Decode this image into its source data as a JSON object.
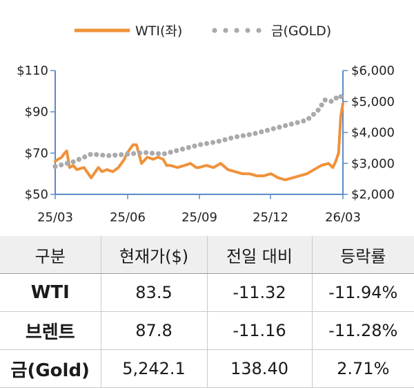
{
  "chart_data": {
    "type": "line",
    "legend": {
      "placement": "top-center",
      "entries": [
        "WTI(좌)",
        "금(GOLD)"
      ]
    },
    "x_tick_labels": [
      "25/03",
      "25/06",
      "25/09",
      "25/12",
      "26/03"
    ],
    "y_left": {
      "ylim": [
        50,
        110
      ],
      "ticks": [
        "$50",
        "$70",
        "$90",
        "$110"
      ]
    },
    "y_right": {
      "ylim": [
        2000,
        6000
      ],
      "ticks": [
        "$2,000",
        "$3,000",
        "$4,000",
        "$5,000",
        "$6,000"
      ]
    },
    "grid": false,
    "series": [
      {
        "name": "WTI(좌)",
        "axis": "left",
        "style": "solid",
        "color": "#f0913a",
        "x": [
          0,
          0.04,
          0.09,
          0.13,
          0.16,
          0.2,
          0.25,
          0.3,
          0.4,
          0.5,
          0.6,
          0.65,
          0.72,
          0.8,
          0.88,
          0.96,
          1.0,
          1.08,
          1.13,
          1.2,
          1.28,
          1.36,
          1.43,
          1.5,
          1.55,
          1.6,
          1.7,
          1.8,
          1.88,
          1.96,
          2.0,
          2.1,
          2.2,
          2.3,
          2.4,
          2.5,
          2.6,
          2.7,
          2.8,
          2.9,
          3.0,
          3.1,
          3.2,
          3.3,
          3.4,
          3.5,
          3.6,
          3.7,
          3.8,
          3.86,
          3.9,
          3.94,
          3.97,
          4.0
        ],
        "values": [
          66,
          67,
          68,
          70,
          71,
          63,
          64,
          62,
          63,
          58,
          63,
          61,
          62,
          61,
          63,
          67,
          70,
          74,
          74,
          65,
          68,
          67,
          68,
          67,
          64,
          64,
          63,
          64,
          65,
          63,
          63,
          64,
          63,
          65,
          62,
          61,
          60,
          60,
          59,
          59,
          60,
          58,
          57,
          58,
          59,
          60,
          62,
          64,
          65,
          63,
          66,
          70,
          88,
          94
        ]
      },
      {
        "name": "금(GOLD)",
        "axis": "right",
        "style": "dotted",
        "color": "#aaaaaa",
        "x": [
          0,
          0.25,
          0.5,
          0.75,
          1.0,
          1.25,
          1.5,
          1.75,
          2.0,
          2.25,
          2.5,
          2.75,
          3.0,
          3.25,
          3.5,
          3.65,
          3.75,
          3.85,
          3.95,
          4.0
        ],
        "values": [
          2900,
          3050,
          3300,
          3250,
          3300,
          3350,
          3300,
          3450,
          3600,
          3700,
          3850,
          3950,
          4100,
          4250,
          4400,
          4700,
          5050,
          5000,
          5200,
          5100
        ]
      }
    ]
  },
  "table": {
    "headers": [
      "구분",
      "현재가($)",
      "전일 대비",
      "등락률"
    ],
    "rows": [
      {
        "label": "WTI",
        "price": "83.5",
        "change": "-11.32",
        "rate": "-11.94%"
      },
      {
        "label": "브렌트",
        "price": "87.8",
        "change": "-11.16",
        "rate": "-11.28%"
      },
      {
        "label": "금(Gold)",
        "price": "5,242.1",
        "change": "138.40",
        "rate": "2.71%"
      }
    ]
  }
}
